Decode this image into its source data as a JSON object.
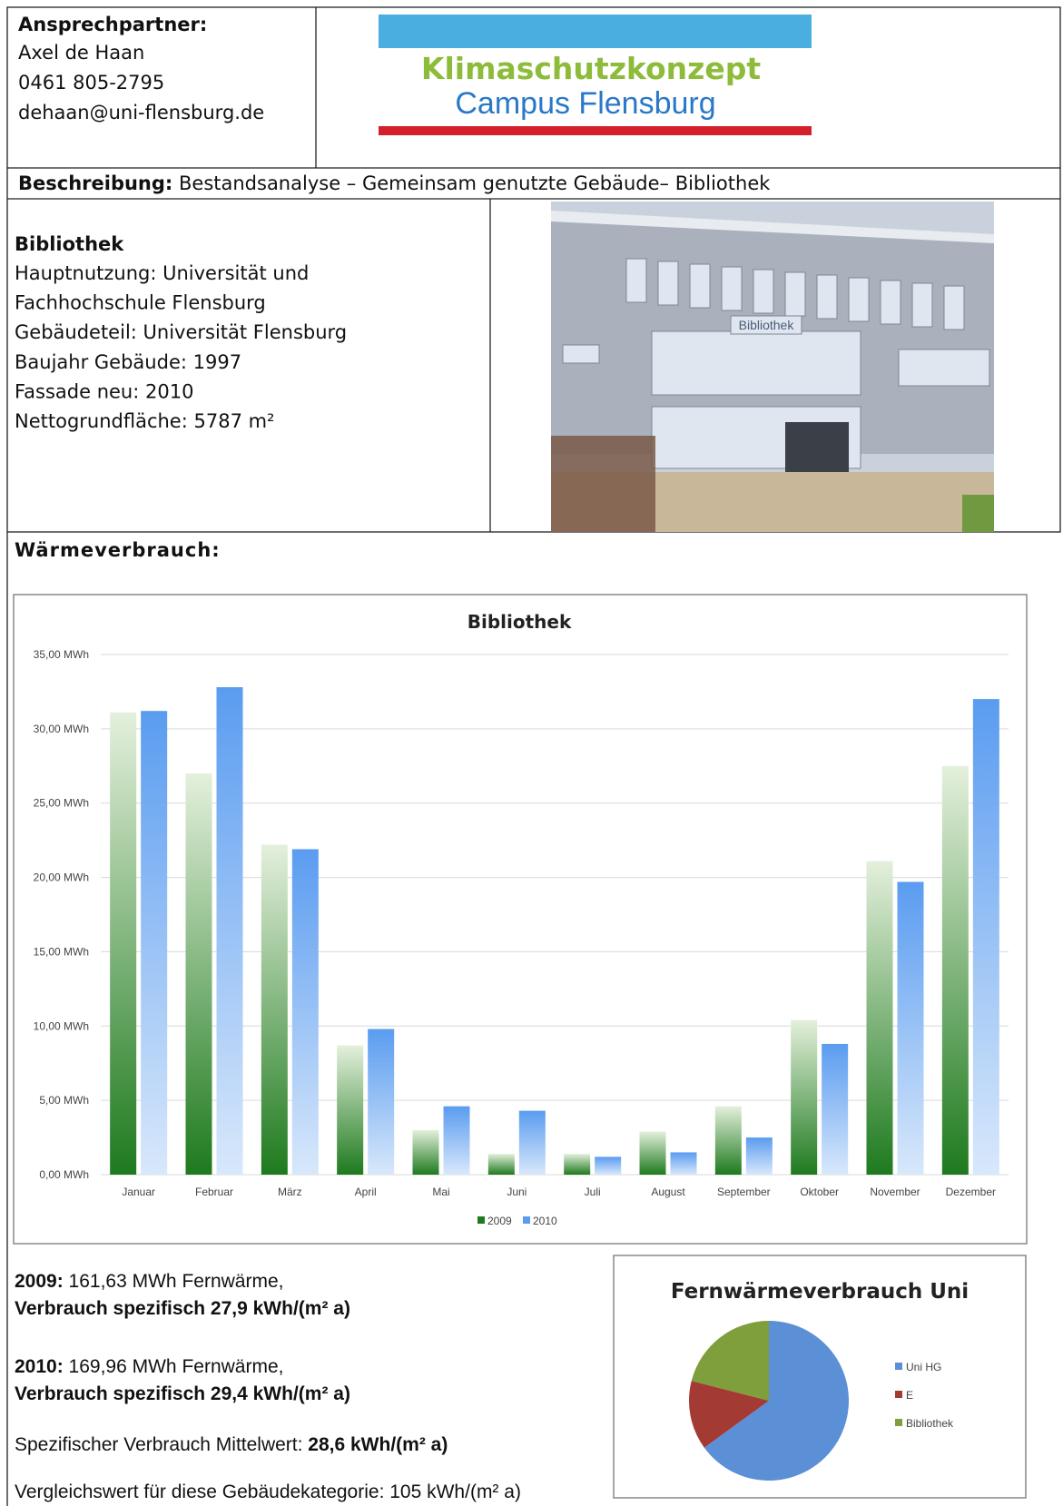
{
  "contact": {
    "heading": "Ansprechpartner:",
    "name": "Axel de Haan",
    "phone": "0461 805-2795",
    "email": "dehaan@uni-flensburg.de"
  },
  "logo": {
    "line1": "Klimaschutzkonzept",
    "line2": "Campus Flensburg"
  },
  "description": {
    "label": "Beschreibung:",
    "text": " Bestandsanalyse – Gemeinsam genutzte Gebäude– Bibliothek"
  },
  "building": {
    "title": "Bibliothek",
    "lines": [
      "Hauptnutzung: Universität und",
      "Fachhochschule Flensburg",
      "Gebäudeteil: Universität Flensburg",
      "Baujahr Gebäude: 1997",
      "Fassade neu: 2010",
      "Nettogrundfläche: 5787 m²"
    ],
    "photo_label": "Bibliothek"
  },
  "section_heading": "Wärmeverbrauch:",
  "chart_data": [
    {
      "type": "bar",
      "title": "Bibliothek",
      "categories": [
        "Januar",
        "Februar",
        "März",
        "April",
        "Mai",
        "Juni",
        "Juli",
        "August",
        "September",
        "Oktober",
        "November",
        "Dezember"
      ],
      "series": [
        {
          "name": "2009",
          "color": "#1e7a1e",
          "values": [
            31.1,
            27.0,
            22.2,
            8.7,
            3.0,
            1.4,
            1.4,
            2.9,
            4.6,
            10.4,
            21.1,
            27.5
          ]
        },
        {
          "name": "2010",
          "color": "#5a9cf0",
          "values": [
            31.2,
            32.8,
            21.9,
            9.8,
            4.6,
            4.3,
            1.2,
            1.5,
            2.5,
            8.8,
            19.7,
            32.0
          ]
        }
      ],
      "ylim": [
        0,
        35
      ],
      "yticks": [
        {
          "value": 0,
          "label": "0,00 MWh"
        },
        {
          "value": 5,
          "label": "5,00 MWh"
        },
        {
          "value": 10,
          "label": "10,00 MWh"
        },
        {
          "value": 15,
          "label": "15,00 MWh"
        },
        {
          "value": 20,
          "label": "20,00 MWh"
        },
        {
          "value": 25,
          "label": "25,00 MWh"
        },
        {
          "value": 30,
          "label": "30,00 MWh"
        },
        {
          "value": 35,
          "label": "35,00 MWh"
        }
      ],
      "grid": true,
      "legend": "bottom"
    },
    {
      "type": "pie",
      "title": "Fernwärmeverbrauch Uni",
      "categories": [
        "Uni HG",
        "E",
        "Bibliothek"
      ],
      "values": [
        65,
        14,
        21
      ],
      "colors": [
        "#5b8fd6",
        "#a33a33",
        "#7f9e3c"
      ],
      "legend": "right"
    }
  ],
  "summary": [
    [
      {
        "text": "2009:",
        "bold": true
      },
      {
        "text": " 161,63 MWh Fernwärme,",
        "bold": false
      }
    ],
    [
      {
        "text": "Verbrauch spezifisch 27,9 kWh/(m² a)",
        "bold": true
      }
    ],
    [
      {
        "text": "2010:",
        "bold": true
      },
      {
        "text": " 169,96 MWh Fernwärme,",
        "bold": false
      }
    ],
    [
      {
        "text": "Verbrauch spezifisch 29,4 kWh/(m² a)",
        "bold": true
      }
    ],
    [
      {
        "text": "Spezifischer Verbrauch Mittelwert: ",
        "bold": false
      },
      {
        "text": "28,6 kWh/(m² a)",
        "bold": true
      }
    ],
    [
      {
        "text": "Vergleichswert für diese Gebäudekategorie: 105 kWh/(m² a)",
        "bold": false
      }
    ]
  ]
}
